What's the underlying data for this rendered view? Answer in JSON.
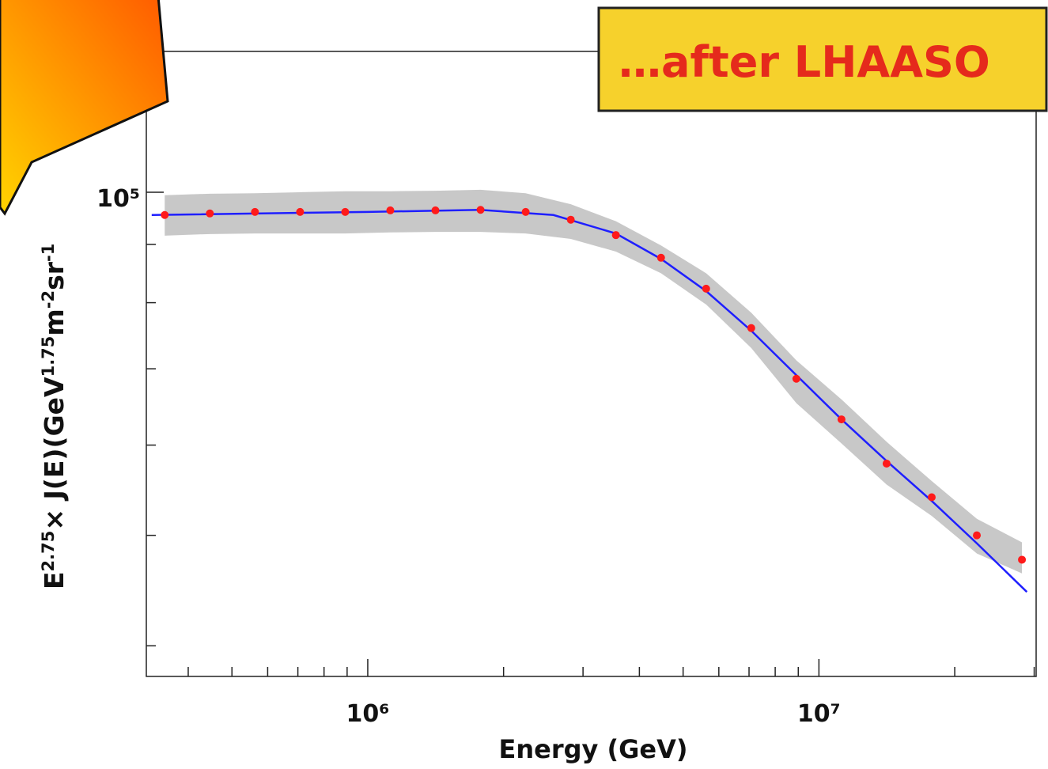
{
  "chart_data": {
    "type": "line",
    "annotation": "…after LHAASO",
    "xlabel": "Energy (GeV)",
    "ylabel": [
      "E",
      "2.75",
      "× J(E)(GeV",
      "1.75",
      "m",
      "-2",
      "sr",
      "-1"
    ],
    "log_x": true,
    "log_y": true,
    "xlim": [
      323000,
      30300000
    ],
    "ylim": [
      37600,
      132900
    ],
    "xticks": [
      {
        "value": 1000000,
        "label": "10⁶"
      },
      {
        "value": 10000000,
        "label": "10⁷"
      }
    ],
    "xminorticks": [
      400000,
      500000,
      600000,
      700000,
      800000,
      900000,
      2000000,
      3000000,
      4000000,
      5000000,
      6000000,
      7000000,
      8000000,
      9000000,
      20000000,
      30000000
    ],
    "yticks": [
      {
        "value": 100000,
        "label": "10⁵"
      }
    ],
    "yminorticks": [
      40000,
      50000,
      60000,
      70000,
      80000,
      90000
    ],
    "band": {
      "color": "#c8c8c8",
      "x": [
        354813,
        446684,
        562341,
        707946,
        891251,
        1122018,
        1412538,
        1778279,
        2238721,
        2818383,
        3548134,
        4466836,
        5623413,
        7079458,
        8912509,
        11220185,
        14125375,
        17782794,
        22387211,
        28183829
      ],
      "upper": [
        99400,
        99700,
        99800,
        100000,
        100200,
        100200,
        100300,
        100500,
        99800,
        97600,
        94300,
        89800,
        84900,
        78400,
        71200,
        65800,
        60400,
        55800,
        51700,
        49300
      ],
      "lower": [
        91600,
        91900,
        92000,
        92000,
        92000,
        92200,
        92300,
        92300,
        92000,
        91000,
        88700,
        84900,
        79700,
        73000,
        65300,
        60200,
        55400,
        52000,
        48200,
        46300
      ]
    },
    "series": [
      {
        "color": "#1f1fff",
        "x": [
          332000,
          1000000,
          1774000,
          2580000,
          3548134,
          4466836,
          5623413,
          7079458,
          8912509,
          11220185,
          14125375,
          17782794,
          22387211,
          28900000
        ],
        "values": [
          95500,
          96100,
          96500,
          95500,
          92000,
          87400,
          81900,
          75600,
          69100,
          63200,
          58100,
          53600,
          49200,
          44600
        ]
      },
      {
        "color": "#ff1a1a",
        "x": [
          354813,
          446684,
          562341,
          707946,
          891251,
          1122018,
          1412538,
          1778279,
          2238721,
          2818383,
          3548134,
          4466836,
          5623413,
          7079458,
          8912509,
          11220185,
          14125375,
          17782794,
          22387211,
          28183829
        ],
        "values": [
          95500,
          95800,
          96100,
          96100,
          96100,
          96400,
          96400,
          96500,
          96100,
          94600,
          91700,
          87600,
          82300,
          76000,
          68600,
          63200,
          57800,
          54000,
          50000,
          47600
        ]
      }
    ]
  }
}
